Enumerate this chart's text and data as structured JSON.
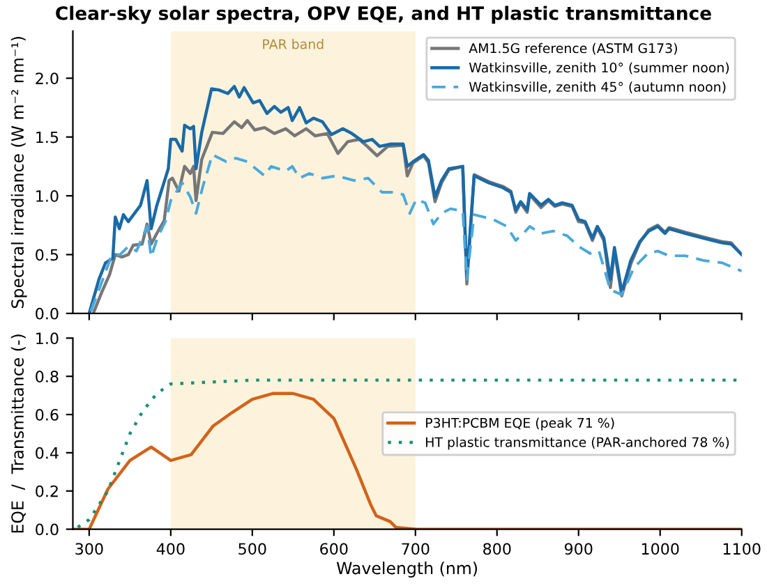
{
  "chart_data": [
    {
      "type": "line",
      "title": "Clear-sky solar spectra, OPV EQE, and HT plastic transmittance",
      "ylabel": "Spectral irradiance (W m⁻² nm⁻¹)",
      "xlim": [
        280,
        1100
      ],
      "xticks": [
        300,
        400,
        500,
        600,
        700,
        800,
        900,
        1000,
        1100
      ],
      "ylim": [
        0,
        2.4
      ],
      "yticks": [
        {
          "value": 0,
          "label": "0.0"
        },
        {
          "value": 0.5,
          "label": "0.5"
        },
        {
          "value": 1,
          "label": "1.0"
        },
        {
          "value": 1.5,
          "label": "1.5"
        },
        {
          "value": 2,
          "label": "2.0"
        }
      ],
      "tick_labels": "y",
      "legend": "top right",
      "grid": false,
      "bands": [
        {
          "axis": "x",
          "from": 400,
          "to": 700,
          "label": "PAR band",
          "color": "#fdf3dc"
        }
      ],
      "series": [
        {
          "name": "AM1.5G reference (ASTM G173)",
          "color": "#777777",
          "line_style": "solid",
          "x": [
            305,
            316,
            325,
            332,
            340,
            348,
            354,
            365,
            371,
            376,
            383,
            392,
            398,
            402,
            410,
            417,
            424,
            428,
            431,
            438,
            451,
            464,
            478,
            487,
            494,
            503,
            515,
            527,
            541,
            552,
            566,
            577,
            592,
            605,
            617,
            631,
            641,
            653,
            666,
            685,
            690,
            697,
            710,
            716,
            724,
            732,
            741,
            758,
            763,
            772,
            790,
            807,
            817,
            823,
            829,
            837,
            840,
            854,
            863,
            871,
            880,
            892,
            900,
            908,
            917,
            923,
            931,
            939,
            944,
            953,
            964,
            975,
            986,
            997,
            1006,
            1011,
            1031,
            1053,
            1076,
            1087,
            1100
          ],
          "values": [
            0,
            0.19,
            0.33,
            0.5,
            0.48,
            0.5,
            0.58,
            0.59,
            0.76,
            0.59,
            0.68,
            0.79,
            1.13,
            1.15,
            1.04,
            1.25,
            1.19,
            1.25,
            0.96,
            1.31,
            1.54,
            1.53,
            1.63,
            1.58,
            1.64,
            1.56,
            1.58,
            1.53,
            1.57,
            1.51,
            1.57,
            1.51,
            1.53,
            1.36,
            1.46,
            1.48,
            1.42,
            1.34,
            1.42,
            1.43,
            1.17,
            1.28,
            1.34,
            1.28,
            0.95,
            1.11,
            1.22,
            1.25,
            0.25,
            1.18,
            1.12,
            1.08,
            1.04,
            0.86,
            0.94,
            0.86,
            1.01,
            0.9,
            0.96,
            0.91,
            0.93,
            0.91,
            0.78,
            0.77,
            0.62,
            0.73,
            0.62,
            0.22,
            0.53,
            0.15,
            0.42,
            0.6,
            0.71,
            0.75,
            0.69,
            0.73,
            0.69,
            0.65,
            0.61,
            0.6,
            0.5
          ]
        },
        {
          "name": "Watkinsville, zenith 10° (summer noon)",
          "color": "#1a6aa6",
          "line_style": "solid",
          "x": [
            300,
            312,
            320,
            329,
            332,
            337,
            342,
            348,
            363,
            371,
            376,
            383,
            388,
            397,
            400,
            406,
            414,
            417,
            424,
            428,
            431,
            438,
            450,
            459,
            470,
            478,
            484,
            490,
            501,
            509,
            518,
            527,
            535,
            544,
            549,
            558,
            566,
            575,
            586,
            597,
            611,
            622,
            636,
            647,
            656,
            670,
            685,
            690,
            697,
            710,
            716,
            724,
            732,
            741,
            758,
            763,
            772,
            790,
            807,
            817,
            823,
            829,
            837,
            840,
            854,
            863,
            871,
            880,
            892,
            900,
            908,
            917,
            923,
            931,
            939,
            944,
            953,
            964,
            975,
            986,
            997,
            1006,
            1011,
            1031,
            1053,
            1076,
            1087,
            1100
          ],
          "values": [
            0,
            0.29,
            0.43,
            0.47,
            0.82,
            0.72,
            0.84,
            0.78,
            0.92,
            1.13,
            0.72,
            0.92,
            1.03,
            1.23,
            1.48,
            1.48,
            1.38,
            1.6,
            1.57,
            1.59,
            1.23,
            1.54,
            1.91,
            1.9,
            1.87,
            1.93,
            1.84,
            1.92,
            1.79,
            1.81,
            1.7,
            1.76,
            1.71,
            1.75,
            1.64,
            1.75,
            1.62,
            1.66,
            1.63,
            1.52,
            1.57,
            1.53,
            1.46,
            1.48,
            1.42,
            1.44,
            1.44,
            1.25,
            1.29,
            1.35,
            1.3,
            0.99,
            1.13,
            1.23,
            1.25,
            0.3,
            1.17,
            1.11,
            1.07,
            1.03,
            0.88,
            0.95,
            0.88,
            1.02,
            0.92,
            0.97,
            0.92,
            0.94,
            0.92,
            0.8,
            0.78,
            0.64,
            0.74,
            0.64,
            0.29,
            0.56,
            0.18,
            0.45,
            0.61,
            0.7,
            0.74,
            0.68,
            0.72,
            0.68,
            0.64,
            0.6,
            0.59,
            0.5
          ]
        },
        {
          "name": "Watkinsville, zenith 45° (autumn noon)",
          "color": "#4aa8dc",
          "line_style": "dashed",
          "x": [
            302,
            313,
            321,
            328,
            338,
            348,
            358,
            371,
            376,
            383,
            394,
            400,
            414,
            424,
            431,
            439,
            451,
            468,
            480,
            494,
            515,
            523,
            541,
            549,
            558,
            570,
            586,
            603,
            625,
            642,
            659,
            676,
            685,
            693,
            701,
            712,
            722,
            732,
            743,
            758,
            763,
            772,
            795,
            812,
            823,
            835,
            840,
            854,
            869,
            886,
            900,
            914,
            925,
            939,
            953,
            968,
            985,
            997,
            1011,
            1031,
            1053,
            1076,
            1100
          ],
          "values": [
            0.02,
            0.22,
            0.37,
            0.5,
            0.5,
            0.57,
            0.53,
            0.74,
            0.48,
            0.63,
            0.79,
            0.96,
            1.11,
            0.99,
            0.85,
            1.07,
            1.35,
            1.29,
            1.32,
            1.29,
            1.17,
            1.25,
            1.21,
            1.25,
            1.15,
            1.19,
            1.15,
            1.17,
            1.13,
            1.15,
            1.03,
            1.03,
            1.01,
            0.85,
            0.97,
            0.94,
            0.76,
            0.85,
            0.89,
            0.87,
            0.29,
            0.84,
            0.8,
            0.74,
            0.62,
            0.7,
            0.74,
            0.68,
            0.7,
            0.66,
            0.57,
            0.51,
            0.53,
            0.2,
            0.16,
            0.39,
            0.51,
            0.53,
            0.49,
            0.49,
            0.45,
            0.43,
            0.36
          ]
        }
      ]
    },
    {
      "type": "line",
      "xlabel": "Wavelength (nm)",
      "ylabel": "EQE  /  Transmittance (-)",
      "xlim": [
        280,
        1100
      ],
      "xticks": [
        300,
        400,
        500,
        600,
        700,
        800,
        900,
        1000,
        1100
      ],
      "ylim": [
        0,
        1
      ],
      "yticks": [
        {
          "value": 0,
          "label": "0.0"
        },
        {
          "value": 0.2,
          "label": "0.2"
        },
        {
          "value": 0.4,
          "label": "0.4"
        },
        {
          "value": 0.6,
          "label": "0.6"
        },
        {
          "value": 0.8,
          "label": "0.8"
        },
        {
          "value": 1,
          "label": "1.0"
        }
      ],
      "legend": "right",
      "grid": false,
      "bands": [
        {
          "axis": "x",
          "from": 400,
          "to": 700,
          "color": "#fdf3dc"
        }
      ],
      "series": [
        {
          "name": "P3HT:PCBM EQE (peak 71 %)",
          "color": "#d4621a",
          "line_style": "solid",
          "x": [
            280,
            300,
            323,
            350,
            376,
            400,
            425,
            452,
            475,
            500,
            525,
            550,
            575,
            600,
            628,
            645,
            652,
            669,
            676,
            702,
            1100
          ],
          "values": [
            0,
            0,
            0.21,
            0.36,
            0.43,
            0.36,
            0.39,
            0.54,
            0.61,
            0.68,
            0.71,
            0.71,
            0.68,
            0.58,
            0.31,
            0.13,
            0.07,
            0.04,
            0.01,
            0,
            0
          ]
        },
        {
          "name": "HT plastic transmittance (PAR-anchored 78 %)",
          "color": "#1a9070",
          "line_style": "dotted",
          "x": [
            286,
            300,
            323,
            350,
            366,
            383,
            400,
            450,
            500,
            1100
          ],
          "values": [
            0.01,
            0.05,
            0.2,
            0.5,
            0.62,
            0.71,
            0.76,
            0.77,
            0.78,
            0.78
          ]
        }
      ]
    }
  ]
}
